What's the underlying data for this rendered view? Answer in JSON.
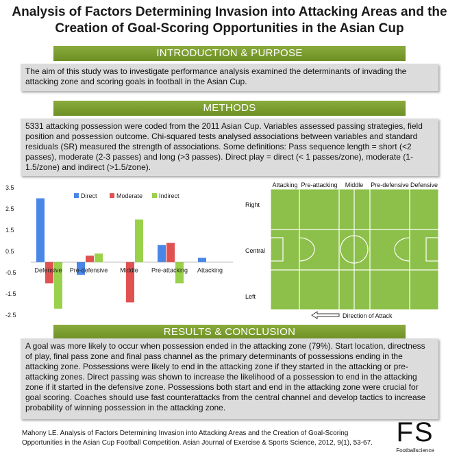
{
  "title_line1": "Analysis of Factors Determining Invasion into Attacking Areas and the",
  "title_line2": "Creation of Goal-Scoring Opportunities in the Asian Cup",
  "sections": {
    "intro_heading": "INTRODUCTION & PURPOSE",
    "intro_text": "The aim of this study was to investigate performance analysis examined the determinants of invading the attacking zone and scoring goals in football in the Asian Cup.",
    "methods_heading": "METHODS",
    "methods_text": "5331 attacking possession were coded from the 2011 Asian Cup. Variables assessed passing strategies, field position and possession outcome. Chi-squared tests analysed associations between variables and standard residuals (SR) measured the strength of associations. Some definitions: Pass sequence length = short (<2 passes), moderate (2-3 passes) and long (>3 passes). Direct play = direct (< 1 passes/zone), moderate (1-1.5/zone) and indirect (>1.5/zone).",
    "results_heading": "RESULTS & CONCLUSION",
    "results_text": "A goal was more likely to occur when possession ended in the attacking zone (79%). Start location, directness of play, final pass zone and final pass channel as the primary determinants of possessions ending in the attacking zone. Possessions were likely to end in the attacking zone if they started in the attacking or pre-attacking zones. Direct passing was shown to increase the likelihood of a possession to end in the attacking zone if it started in the defensive zone. Possessions both start and end in the attacking zone were crucial for goal scoring. Coaches should use fast counterattacks from the central channel and develop tactics to increase probability of winning possession in the attacking zone."
  },
  "chart_data": {
    "type": "bar",
    "categories": [
      "Defensive",
      "Pre-defensive",
      "Middle",
      "Pre-attacking",
      "Attacking"
    ],
    "series": [
      {
        "name": "Direct",
        "color": "#4a86e8",
        "values": [
          3.0,
          -0.6,
          0.0,
          0.8,
          0.2
        ]
      },
      {
        "name": "Moderate",
        "color": "#e05252",
        "values": [
          -1.0,
          0.3,
          -1.9,
          0.9,
          0.0
        ]
      },
      {
        "name": "Indirect",
        "color": "#9ad14b",
        "values": [
          -2.2,
          0.4,
          2.0,
          -1.0,
          0.0
        ]
      }
    ],
    "ylim": [
      -2.5,
      3.5
    ],
    "yticks": [
      "3.5",
      "2.5",
      "1.5",
      "0.5",
      "-0.5",
      "-1.5",
      "-2.5"
    ],
    "legend": "top"
  },
  "pitch": {
    "zones": [
      "Attacking",
      "Pre-attacking",
      "Middle",
      "Pre-defensive",
      "Defensive"
    ],
    "channels": [
      "Right",
      "Central",
      "Left"
    ],
    "direction_label": "Direction of Attack",
    "color": "#8dc04a"
  },
  "citation_line1": "Mahony LE. Analysis of Factors Determining Invasion into Attacking Areas and the Creation of Goal-Scoring",
  "citation_line2": "Opportunities in the Asian Cup Football Competition. Asian Journal of Exercise & Sports Science, 2012, 9(1), 53-67.",
  "logo": {
    "mark": "FS",
    "text": "Footballscience"
  }
}
